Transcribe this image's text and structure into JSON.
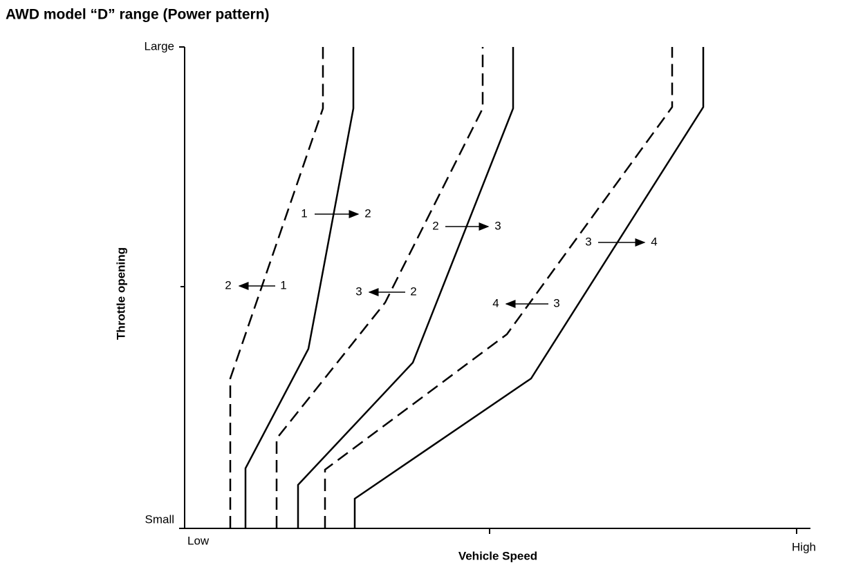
{
  "header": {
    "title": "AWD model “D” range (Power pattern)"
  },
  "y_axis": {
    "label": "Throttle opening",
    "top": "Large",
    "bottom": "Small"
  },
  "x_axis": {
    "label": "Vehicle Speed",
    "left": "Low",
    "right": "High"
  },
  "shift_labels": [
    {
      "from": "1",
      "to": "2"
    },
    {
      "from": "1",
      "to": "2"
    },
    {
      "from": "2",
      "to": "3"
    },
    {
      "from": "2",
      "to": "3"
    },
    {
      "from": "3",
      "to": "4"
    },
    {
      "from": "3",
      "to": "4"
    }
  ]
}
